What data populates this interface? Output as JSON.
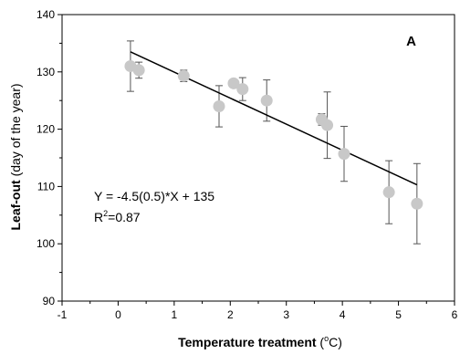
{
  "chart_data": {
    "type": "scatter",
    "panel_label": "A",
    "xlabel": {
      "bold": "Temperature treatment",
      "plain_before_sup": " (",
      "sup": "o",
      "plain_after_sup": "C)"
    },
    "ylabel": {
      "bold": "Leaf-out",
      "plain": " (day of the year)"
    },
    "xlim": [
      -1,
      6
    ],
    "ylim": [
      90,
      140
    ],
    "x_ticks": [
      "-1",
      "0",
      "1",
      "2",
      "3",
      "4",
      "5",
      "6"
    ],
    "y_ticks": [
      "90",
      "100",
      "110",
      "120",
      "130",
      "140"
    ],
    "grid": false,
    "points": [
      {
        "x": 0.22,
        "y": 131.0,
        "err": 4.4
      },
      {
        "x": 0.37,
        "y": 130.3,
        "err": 1.4
      },
      {
        "x": 1.17,
        "y": 129.3,
        "err": 1.0
      },
      {
        "x": 1.8,
        "y": 124.0,
        "err": 3.6
      },
      {
        "x": 2.06,
        "y": 128.0,
        "err": 0.0
      },
      {
        "x": 2.22,
        "y": 127.0,
        "err": 2.0
      },
      {
        "x": 2.65,
        "y": 125.0,
        "err": 3.6
      },
      {
        "x": 3.63,
        "y": 121.7,
        "err": 1.0
      },
      {
        "x": 3.73,
        "y": 120.7,
        "err": 5.8
      },
      {
        "x": 4.03,
        "y": 115.7,
        "err": 4.8
      },
      {
        "x": 4.83,
        "y": 109.0,
        "err": 5.5
      },
      {
        "x": 5.33,
        "y": 107.0,
        "err": 7.0
      }
    ],
    "fit_line": {
      "x1": 0.22,
      "y1": 133.5,
      "x2": 5.33,
      "y2": 110.3
    },
    "equation": "Y = -4.5(0.5)*X + 135",
    "r2": {
      "base": "R",
      "sup": "2",
      "value": "=0.87"
    },
    "colors": {
      "marker": "#c8c8c8",
      "line": "#000000",
      "errorbar": "#555555"
    }
  }
}
